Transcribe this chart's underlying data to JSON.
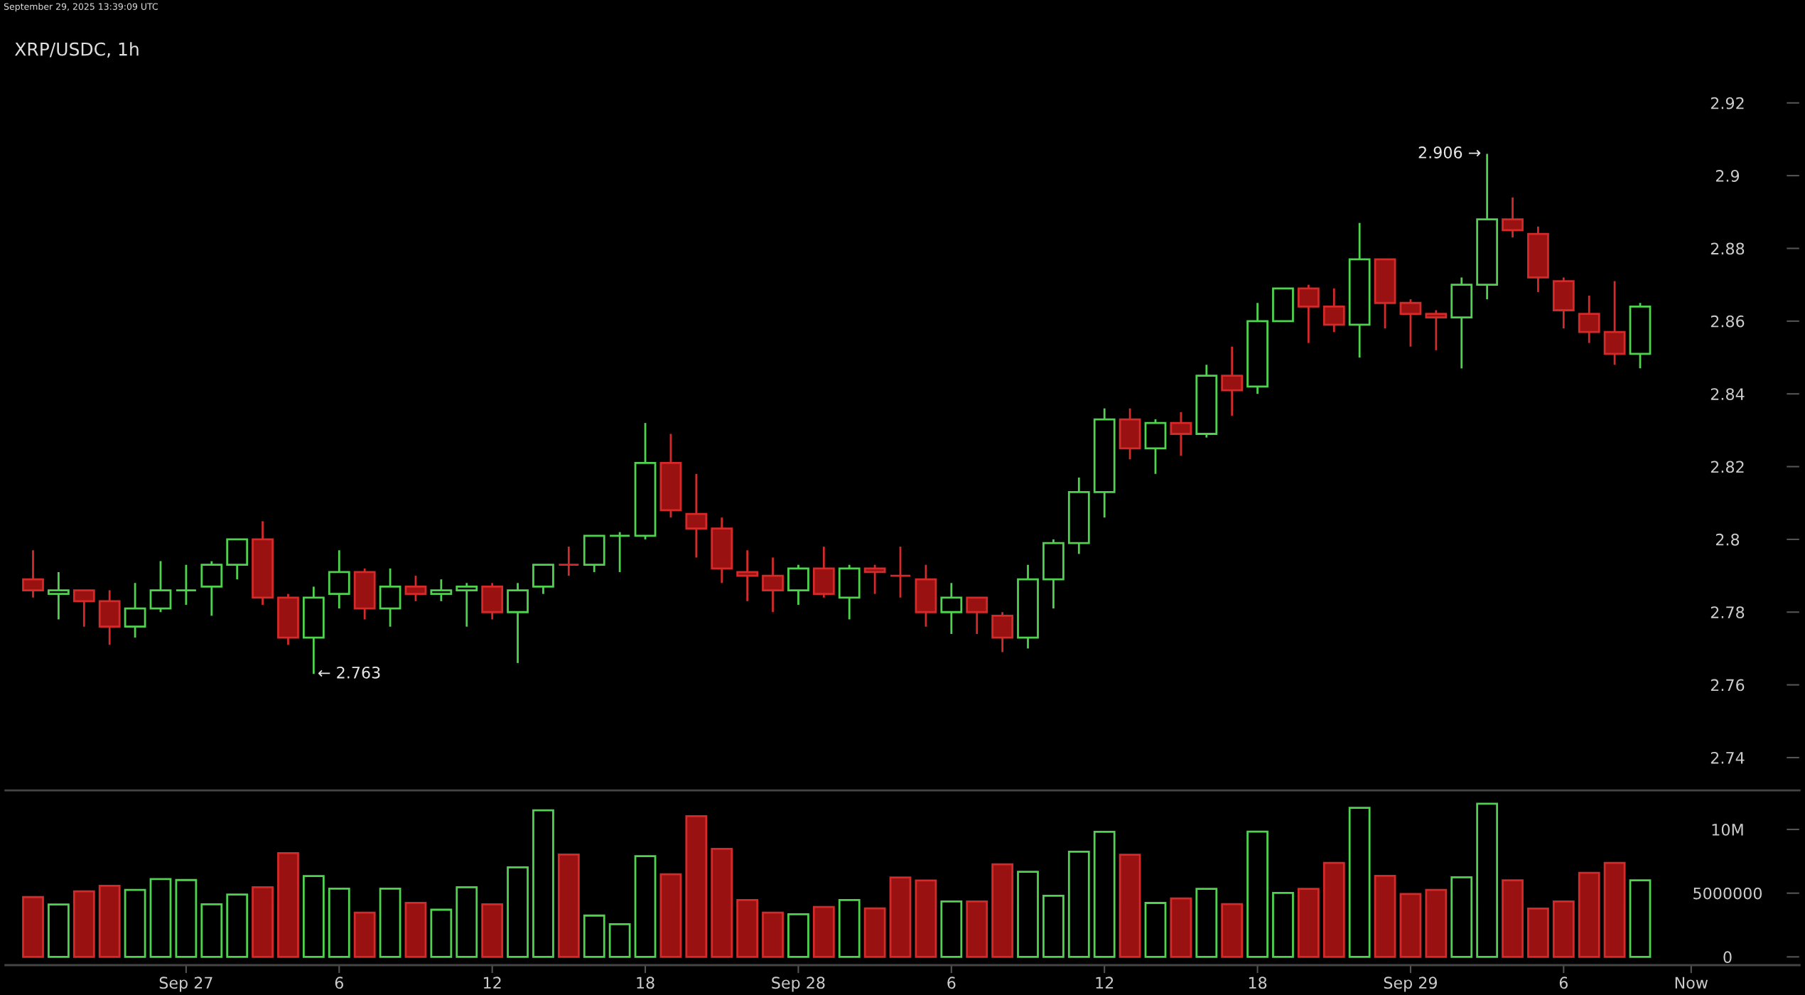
{
  "chart_data": [
    {
      "type": "candlestick",
      "title": "XRP/USDC, 1h",
      "annotations": [
        "September 29, 2025 13:39:09 UTC",
        {
          "text": "2.906 →",
          "x": "2025-09-29T03:00",
          "y": 2.906
        },
        {
          "text": "← 2.763",
          "x": "2025-09-27T05:00",
          "y": 2.763
        }
      ],
      "x": [
        "2025-09-26T18:00",
        "2025-09-26T19:00",
        "2025-09-26T20:00",
        "2025-09-26T21:00",
        "2025-09-26T22:00",
        "2025-09-26T23:00",
        "2025-09-27T00:00",
        "2025-09-27T01:00",
        "2025-09-27T02:00",
        "2025-09-27T03:00",
        "2025-09-27T04:00",
        "2025-09-27T05:00",
        "2025-09-27T06:00",
        "2025-09-27T07:00",
        "2025-09-27T08:00",
        "2025-09-27T09:00",
        "2025-09-27T10:00",
        "2025-09-27T11:00",
        "2025-09-27T12:00",
        "2025-09-27T13:00",
        "2025-09-27T14:00",
        "2025-09-27T15:00",
        "2025-09-27T16:00",
        "2025-09-27T17:00",
        "2025-09-27T18:00",
        "2025-09-27T19:00",
        "2025-09-27T20:00",
        "2025-09-27T21:00",
        "2025-09-27T22:00",
        "2025-09-27T23:00",
        "2025-09-28T00:00",
        "2025-09-28T01:00",
        "2025-09-28T02:00",
        "2025-09-28T03:00",
        "2025-09-28T04:00",
        "2025-09-28T05:00",
        "2025-09-28T06:00",
        "2025-09-28T07:00",
        "2025-09-28T08:00",
        "2025-09-28T09:00",
        "2025-09-28T10:00",
        "2025-09-28T11:00",
        "2025-09-28T12:00",
        "2025-09-28T13:00",
        "2025-09-28T14:00",
        "2025-09-28T15:00",
        "2025-09-28T16:00",
        "2025-09-28T17:00",
        "2025-09-28T18:00",
        "2025-09-28T19:00",
        "2025-09-28T20:00",
        "2025-09-28T21:00",
        "2025-09-28T22:00",
        "2025-09-28T23:00",
        "2025-09-29T00:00",
        "2025-09-29T01:00",
        "2025-09-29T02:00",
        "2025-09-29T03:00",
        "2025-09-29T04:00",
        "2025-09-29T05:00",
        "2025-09-29T06:00",
        "2025-09-29T07:00",
        "2025-09-29T08:00",
        "2025-09-29T09:00"
      ],
      "ohlc": [
        [
          2.789,
          2.797,
          2.784,
          2.786
        ],
        [
          2.785,
          2.791,
          2.778,
          2.786
        ],
        [
          2.786,
          2.786,
          2.776,
          2.783
        ],
        [
          2.783,
          2.786,
          2.771,
          2.776
        ],
        [
          2.776,
          2.788,
          2.773,
          2.781
        ],
        [
          2.781,
          2.794,
          2.78,
          2.786
        ],
        [
          2.786,
          2.793,
          2.782,
          2.786
        ],
        [
          2.787,
          2.794,
          2.779,
          2.793
        ],
        [
          2.793,
          2.8,
          2.789,
          2.8
        ],
        [
          2.8,
          2.805,
          2.782,
          2.784
        ],
        [
          2.784,
          2.785,
          2.771,
          2.773
        ],
        [
          2.773,
          2.787,
          2.763,
          2.784
        ],
        [
          2.785,
          2.797,
          2.781,
          2.791
        ],
        [
          2.791,
          2.792,
          2.778,
          2.781
        ],
        [
          2.781,
          2.792,
          2.776,
          2.787
        ],
        [
          2.787,
          2.79,
          2.783,
          2.785
        ],
        [
          2.785,
          2.789,
          2.783,
          2.786
        ],
        [
          2.786,
          2.788,
          2.776,
          2.787
        ],
        [
          2.787,
          2.788,
          2.778,
          2.78
        ],
        [
          2.78,
          2.788,
          2.766,
          2.786
        ],
        [
          2.787,
          2.793,
          2.785,
          2.793
        ],
        [
          2.793,
          2.798,
          2.79,
          2.793
        ],
        [
          2.793,
          2.801,
          2.791,
          2.801
        ],
        [
          2.801,
          2.802,
          2.791,
          2.801
        ],
        [
          2.801,
          2.832,
          2.8,
          2.821
        ],
        [
          2.821,
          2.829,
          2.806,
          2.808
        ],
        [
          2.807,
          2.818,
          2.795,
          2.803
        ],
        [
          2.803,
          2.806,
          2.788,
          2.792
        ],
        [
          2.791,
          2.797,
          2.783,
          2.79
        ],
        [
          2.79,
          2.795,
          2.78,
          2.786
        ],
        [
          2.786,
          2.793,
          2.782,
          2.792
        ],
        [
          2.792,
          2.798,
          2.784,
          2.785
        ],
        [
          2.784,
          2.793,
          2.778,
          2.792
        ],
        [
          2.792,
          2.793,
          2.785,
          2.791
        ],
        [
          2.79,
          2.798,
          2.784,
          2.79
        ],
        [
          2.789,
          2.793,
          2.776,
          2.78
        ],
        [
          2.78,
          2.788,
          2.774,
          2.784
        ],
        [
          2.784,
          2.784,
          2.774,
          2.78
        ],
        [
          2.779,
          2.78,
          2.769,
          2.773
        ],
        [
          2.773,
          2.793,
          2.77,
          2.789
        ],
        [
          2.789,
          2.8,
          2.781,
          2.799
        ],
        [
          2.799,
          2.817,
          2.796,
          2.813
        ],
        [
          2.813,
          2.836,
          2.806,
          2.833
        ],
        [
          2.833,
          2.836,
          2.822,
          2.825
        ],
        [
          2.825,
          2.833,
          2.818,
          2.832
        ],
        [
          2.832,
          2.835,
          2.823,
          2.829
        ],
        [
          2.829,
          2.848,
          2.828,
          2.845
        ],
        [
          2.845,
          2.853,
          2.834,
          2.841
        ],
        [
          2.842,
          2.865,
          2.84,
          2.86
        ],
        [
          2.86,
          2.869,
          2.86,
          2.869
        ],
        [
          2.869,
          2.87,
          2.854,
          2.864
        ],
        [
          2.864,
          2.869,
          2.857,
          2.859
        ],
        [
          2.859,
          2.887,
          2.85,
          2.877
        ],
        [
          2.877,
          2.877,
          2.858,
          2.865
        ],
        [
          2.865,
          2.866,
          2.853,
          2.862
        ],
        [
          2.862,
          2.863,
          2.852,
          2.861
        ],
        [
          2.861,
          2.872,
          2.847,
          2.87
        ],
        [
          2.87,
          2.906,
          2.866,
          2.888
        ],
        [
          2.888,
          2.894,
          2.883,
          2.885
        ],
        [
          2.884,
          2.886,
          2.868,
          2.872
        ],
        [
          2.871,
          2.872,
          2.858,
          2.863
        ],
        [
          2.862,
          2.867,
          2.854,
          2.857
        ],
        [
          2.857,
          2.871,
          2.848,
          2.851
        ],
        [
          2.851,
          2.865,
          2.847,
          2.864
        ]
      ],
      "colors": [
        "#d42a2a",
        "#4fd34f",
        "#d42a2a",
        "#d42a2a",
        "#4fd34f",
        "#4fd34f",
        "#4fd34f",
        "#4fd34f",
        "#4fd34f",
        "#d42a2a",
        "#d42a2a",
        "#4fd34f",
        "#4fd34f",
        "#d42a2a",
        "#4fd34f",
        "#d42a2a",
        "#4fd34f",
        "#4fd34f",
        "#d42a2a",
        "#4fd34f",
        "#4fd34f",
        "#d42a2a",
        "#4fd34f",
        "#4fd34f",
        "#4fd34f",
        "#d42a2a",
        "#d42a2a",
        "#d42a2a",
        "#d42a2a",
        "#d42a2a",
        "#4fd34f",
        "#d42a2a",
        "#4fd34f",
        "#d42a2a",
        "#d42a2a",
        "#d42a2a",
        "#4fd34f",
        "#d42a2a",
        "#d42a2a",
        "#4fd34f",
        "#4fd34f",
        "#4fd34f",
        "#4fd34f",
        "#d42a2a",
        "#4fd34f",
        "#d42a2a",
        "#4fd34f",
        "#d42a2a",
        "#4fd34f",
        "#4fd34f",
        "#d42a2a",
        "#d42a2a",
        "#4fd34f",
        "#d42a2a",
        "#d42a2a",
        "#d42a2a",
        "#4fd34f",
        "#4fd34f",
        "#d42a2a",
        "#d42a2a",
        "#d42a2a",
        "#d42a2a",
        "#d42a2a",
        "#4fd34f"
      ],
      "xlim": [
        "2025-09-26T16:55",
        "2025-09-29T15:15"
      ],
      "ylim": [
        2.731,
        2.942
      ],
      "yticks": [
        2.74,
        2.76,
        2.78,
        2.8,
        2.82,
        2.84,
        2.86,
        2.88,
        2.9,
        2.92
      ],
      "tick_labels": "y"
    },
    {
      "type": "bar",
      "x": [
        "2025-09-26T18:00",
        "2025-09-26T19:00",
        "2025-09-26T20:00",
        "2025-09-26T21:00",
        "2025-09-26T22:00",
        "2025-09-26T23:00",
        "2025-09-27T00:00",
        "2025-09-27T01:00",
        "2025-09-27T02:00",
        "2025-09-27T03:00",
        "2025-09-27T04:00",
        "2025-09-27T05:00",
        "2025-09-27T06:00",
        "2025-09-27T07:00",
        "2025-09-27T08:00",
        "2025-09-27T09:00",
        "2025-09-27T10:00",
        "2025-09-27T11:00",
        "2025-09-27T12:00",
        "2025-09-27T13:00",
        "2025-09-27T14:00",
        "2025-09-27T15:00",
        "2025-09-27T16:00",
        "2025-09-27T17:00",
        "2025-09-27T18:00",
        "2025-09-27T19:00",
        "2025-09-27T20:00",
        "2025-09-27T21:00",
        "2025-09-27T22:00",
        "2025-09-27T23:00",
        "2025-09-28T00:00",
        "2025-09-28T01:00",
        "2025-09-28T02:00",
        "2025-09-28T03:00",
        "2025-09-28T04:00",
        "2025-09-28T05:00",
        "2025-09-28T06:00",
        "2025-09-28T07:00",
        "2025-09-28T08:00",
        "2025-09-28T09:00",
        "2025-09-28T10:00",
        "2025-09-28T11:00",
        "2025-09-28T12:00",
        "2025-09-28T13:00",
        "2025-09-28T14:00",
        "2025-09-28T15:00",
        "2025-09-28T16:00",
        "2025-09-28T17:00",
        "2025-09-28T18:00",
        "2025-09-28T19:00",
        "2025-09-28T20:00",
        "2025-09-28T21:00",
        "2025-09-28T22:00",
        "2025-09-28T23:00",
        "2025-09-29T00:00",
        "2025-09-29T01:00",
        "2025-09-29T02:00",
        "2025-09-29T03:00",
        "2025-09-29T04:00",
        "2025-09-29T05:00",
        "2025-09-29T06:00",
        "2025-09-29T07:00",
        "2025-09-29T08:00",
        "2025-09-29T09:00"
      ],
      "values": [
        4690000,
        4110000,
        5150000,
        5580000,
        5260000,
        6110000,
        6030000,
        4120000,
        4890000,
        5460000,
        8140000,
        6340000,
        5350000,
        3470000,
        5350000,
        4240000,
        3700000,
        5460000,
        4120000,
        7030000,
        11500000,
        8030000,
        3240000,
        2560000,
        7910000,
        6480000,
        11040000,
        8480000,
        4460000,
        3470000,
        3350000,
        3920000,
        4460000,
        3800000,
        6230000,
        6000000,
        4350000,
        4350000,
        7260000,
        6680000,
        4800000,
        8250000,
        9820000,
        8020000,
        4230000,
        4580000,
        5340000,
        4140000,
        9830000,
        5020000,
        5340000,
        7380000,
        11700000,
        6360000,
        4930000,
        5250000,
        6240000,
        12020000,
        6010000,
        3790000,
        4350000,
        6590000,
        7380000,
        6010000
      ],
      "colors": [
        "#d42a2a",
        "#4fd34f",
        "#d42a2a",
        "#d42a2a",
        "#4fd34f",
        "#4fd34f",
        "#4fd34f",
        "#4fd34f",
        "#4fd34f",
        "#d42a2a",
        "#d42a2a",
        "#4fd34f",
        "#4fd34f",
        "#d42a2a",
        "#4fd34f",
        "#d42a2a",
        "#4fd34f",
        "#4fd34f",
        "#d42a2a",
        "#4fd34f",
        "#4fd34f",
        "#d42a2a",
        "#4fd34f",
        "#4fd34f",
        "#4fd34f",
        "#d42a2a",
        "#d42a2a",
        "#d42a2a",
        "#d42a2a",
        "#d42a2a",
        "#4fd34f",
        "#d42a2a",
        "#4fd34f",
        "#d42a2a",
        "#d42a2a",
        "#d42a2a",
        "#4fd34f",
        "#d42a2a",
        "#d42a2a",
        "#4fd34f",
        "#4fd34f",
        "#4fd34f",
        "#4fd34f",
        "#d42a2a",
        "#4fd34f",
        "#d42a2a",
        "#4fd34f",
        "#d42a2a",
        "#4fd34f",
        "#4fd34f",
        "#d42a2a",
        "#d42a2a",
        "#4fd34f",
        "#d42a2a",
        "#d42a2a",
        "#d42a2a",
        "#4fd34f",
        "#4fd34f",
        "#d42a2a",
        "#d42a2a",
        "#d42a2a",
        "#d42a2a",
        "#d42a2a",
        "#4fd34f"
      ],
      "xlim": [
        "2025-09-26T16:55",
        "2025-09-29T15:15"
      ],
      "xticks": [
        {
          "value": "2025-09-27T00:00",
          "label": "Sep 27"
        },
        {
          "value": "2025-09-27T06:00",
          "label": "6"
        },
        {
          "value": "2025-09-27T12:00",
          "label": "12"
        },
        {
          "value": "2025-09-27T18:00",
          "label": "18"
        },
        {
          "value": "2025-09-28T00:00",
          "label": "Sep 28"
        },
        {
          "value": "2025-09-28T06:00",
          "label": "6"
        },
        {
          "value": "2025-09-28T12:00",
          "label": "12"
        },
        {
          "value": "2025-09-28T18:00",
          "label": "18"
        },
        {
          "value": "2025-09-29T00:00",
          "label": "Sep 29"
        },
        {
          "value": "2025-09-29T06:00",
          "label": "6"
        },
        {
          "value": "2025-09-29T11:00",
          "label": "Now"
        }
      ],
      "ylim": [
        -650000,
        13070000
      ],
      "yticks": [
        0,
        5000000,
        {
          "value": 10000000,
          "label": "10M"
        }
      ]
    }
  ]
}
